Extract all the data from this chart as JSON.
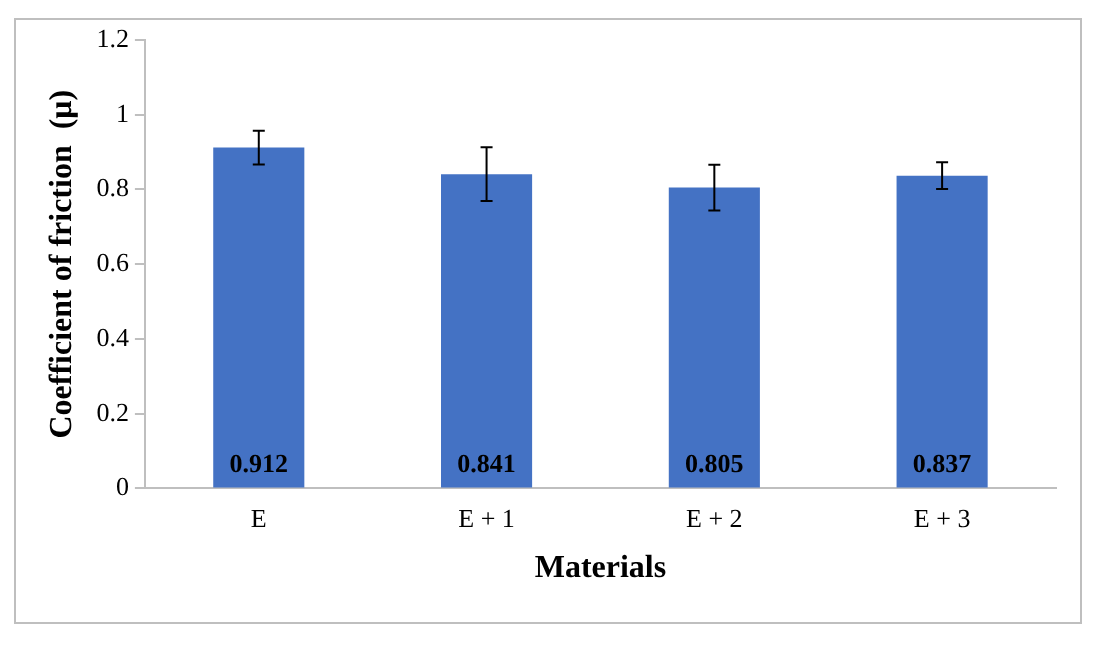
{
  "chart_data": {
    "type": "bar",
    "xlabel": "Materials",
    "ylabel": "Coefficient of friction  (μ)",
    "categories": [
      "E",
      "E + 1",
      "E + 2",
      "E + 3"
    ],
    "values": [
      0.912,
      0.841,
      0.805,
      0.837
    ],
    "errors": [
      0.045,
      0.072,
      0.061,
      0.036
    ],
    "color": "#4472c4",
    "ylim": [
      0,
      1.2
    ],
    "yticks": [
      0,
      0.2,
      0.4,
      0.6,
      0.8,
      1,
      1.2
    ],
    "grid": false,
    "legend": false,
    "data_labels": true
  }
}
